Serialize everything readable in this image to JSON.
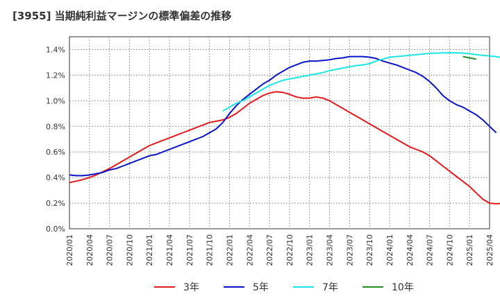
{
  "title": "[3955]  当期純利益マージンの標準偏差の推移",
  "chart_data": {
    "type": "line",
    "title": "[3955]  当期純利益マージンの標準偏差の推移",
    "xlabel": "",
    "ylabel": "",
    "ylim": [
      0,
      0.015
    ],
    "yticks": [
      "0.0%",
      "0.2%",
      "0.4%",
      "0.6%",
      "0.8%",
      "1.0%",
      "1.2%",
      "1.4%"
    ],
    "xticks": [
      "2020/01",
      "2020/04",
      "2020/07",
      "2020/10",
      "2021/01",
      "2021/04",
      "2021/07",
      "2021/10",
      "2022/01",
      "2022/04",
      "2022/07",
      "2022/10",
      "2023/01",
      "2023/04",
      "2023/07",
      "2023/10",
      "2024/01",
      "2024/04",
      "2024/07",
      "2024/10",
      "2025/01",
      "2025/04"
    ],
    "grid": true,
    "legend_position": "bottom",
    "series": [
      {
        "name": "3年",
        "color": "#e31a1c",
        "start": "2020/01",
        "values": [
          0.0036,
          0.00372,
          0.00384,
          0.004,
          0.0042,
          0.00445,
          0.0047,
          0.005,
          0.0053,
          0.0056,
          0.0059,
          0.0062,
          0.0065,
          0.0067,
          0.0069,
          0.0071,
          0.0073,
          0.0075,
          0.0077,
          0.0079,
          0.0081,
          0.0083,
          0.0084,
          0.0085,
          0.0087,
          0.009,
          0.0094,
          0.0098,
          0.0101,
          0.0104,
          0.0106,
          0.0107,
          0.01065,
          0.0105,
          0.0103,
          0.0102,
          0.0102,
          0.0103,
          0.0102,
          0.01,
          0.0097,
          0.0094,
          0.0091,
          0.0088,
          0.0085,
          0.0082,
          0.0079,
          0.0076,
          0.0073,
          0.007,
          0.0067,
          0.0064,
          0.0062,
          0.006,
          0.0057,
          0.0053,
          0.0049,
          0.0045,
          0.0041,
          0.0037,
          0.0033,
          0.0028,
          0.0023,
          0.002,
          0.00195,
          0.00198,
          0.00205,
          0.0022,
          0.0024,
          0.0028
        ]
      },
      {
        "name": "5年",
        "color": "#0a14c8",
        "start": "2020/01",
        "values": [
          0.0042,
          0.00415,
          0.00415,
          0.0042,
          0.0043,
          0.0044,
          0.0046,
          0.0047,
          0.0049,
          0.0051,
          0.0053,
          0.0055,
          0.0057,
          0.0058,
          0.006,
          0.0062,
          0.0064,
          0.0066,
          0.0068,
          0.007,
          0.0072,
          0.0075,
          0.0078,
          0.0083,
          0.009,
          0.0096,
          0.0101,
          0.0105,
          0.0109,
          0.0113,
          0.0116,
          0.012,
          0.0123,
          0.0126,
          0.0128,
          0.013,
          0.0131,
          0.0131,
          0.01315,
          0.0132,
          0.0133,
          0.01335,
          0.01345,
          0.01345,
          0.01345,
          0.0134,
          0.0133,
          0.0131,
          0.01295,
          0.0128,
          0.0126,
          0.0124,
          0.0122,
          0.0119,
          0.0115,
          0.011,
          0.0104,
          0.01,
          0.0097,
          0.0095,
          0.0092,
          0.0089,
          0.0085,
          0.008,
          0.0075
        ]
      },
      {
        "name": "7年",
        "color": "#19e6e6",
        "start": "2021/12",
        "values": [
          0.0092,
          0.0095,
          0.0098,
          0.01,
          0.0103,
          0.0106,
          0.0109,
          0.0112,
          0.0114,
          0.0116,
          0.0117,
          0.0118,
          0.0119,
          0.012,
          0.0121,
          0.0122,
          0.01235,
          0.01245,
          0.01255,
          0.01265,
          0.01275,
          0.0128,
          0.0129,
          0.0131,
          0.01325,
          0.0134,
          0.01345,
          0.0135,
          0.01355,
          0.0136,
          0.01365,
          0.0137,
          0.01372,
          0.01374,
          0.01375,
          0.01374,
          0.01372,
          0.01368,
          0.0136,
          0.01355,
          0.0135,
          0.01345,
          0.01335
        ]
      },
      {
        "name": "10年",
        "color": "#228b22",
        "start": "2024/12",
        "values": [
          0.01345,
          0.01335,
          0.01325
        ]
      }
    ]
  }
}
